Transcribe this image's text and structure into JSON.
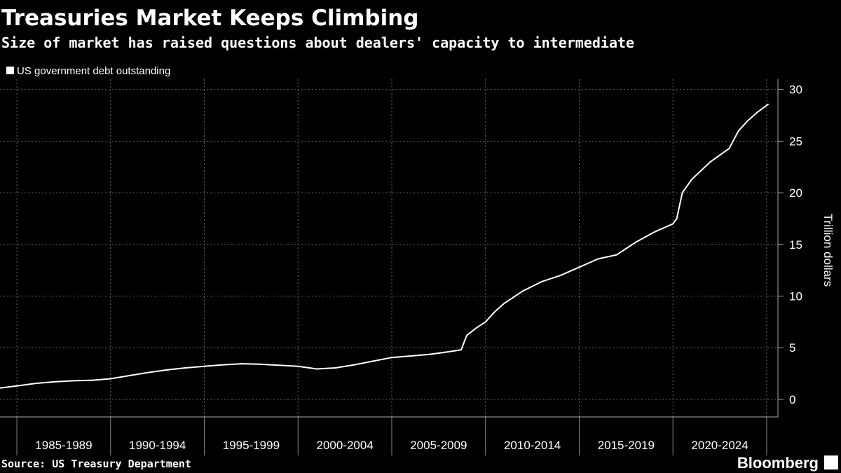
{
  "chart_data": {
    "type": "line",
    "title": "Treasuries Market Keeps Climbing",
    "subtitle": "Size of market has raised questions about dealers' capacity to intermediate",
    "y_axis_label": "Trillion dollars",
    "source": "Source: US Treasury Department",
    "branding": "Bloomberg",
    "series": [
      {
        "name": "US government debt outstanding",
        "color": "#ffffff",
        "x": [
          1984.1,
          1985,
          1986,
          1987,
          1988,
          1989,
          1990,
          1991,
          1992,
          1993,
          1994,
          1995,
          1996,
          1997,
          1998,
          1999,
          2000,
          2001,
          2002,
          2003,
          2004,
          2005,
          2006,
          2007,
          2008,
          2008.7,
          2009,
          2009.5,
          2010,
          2010.5,
          2011,
          2012,
          2013,
          2014,
          2015,
          2016,
          2017,
          2018,
          2019,
          2020,
          2020.2,
          2020.5,
          2021,
          2022,
          2023,
          2023.5,
          2024,
          2024.5,
          2025.1
        ],
        "values": [
          1.1,
          1.3,
          1.55,
          1.7,
          1.8,
          1.85,
          2.0,
          2.3,
          2.6,
          2.85,
          3.05,
          3.2,
          3.35,
          3.45,
          3.4,
          3.3,
          3.2,
          2.95,
          3.05,
          3.35,
          3.7,
          4.05,
          4.2,
          4.35,
          4.6,
          4.8,
          6.2,
          6.9,
          7.5,
          8.5,
          9.3,
          10.5,
          11.4,
          12.0,
          12.8,
          13.6,
          14.0,
          15.2,
          16.2,
          17.0,
          17.5,
          20.0,
          21.3,
          23.0,
          24.3,
          26.0,
          27.0,
          27.8,
          28.6
        ]
      }
    ],
    "xlim": [
      1984.1,
      2025.6
    ],
    "xticks": [
      1985,
      1990,
      1995,
      2000,
      2005,
      2010,
      2015,
      2020,
      2025
    ],
    "period_labels": [
      "1985-1989",
      "1990-1994",
      "1995-1999",
      "2000-2004",
      "2005-2009",
      "2010-2014",
      "2015-2019",
      "2020-2024"
    ],
    "ylim": [
      -1.7,
      31
    ],
    "yticks": [
      0,
      5,
      10,
      15,
      20,
      25,
      30
    ],
    "grid": true
  }
}
